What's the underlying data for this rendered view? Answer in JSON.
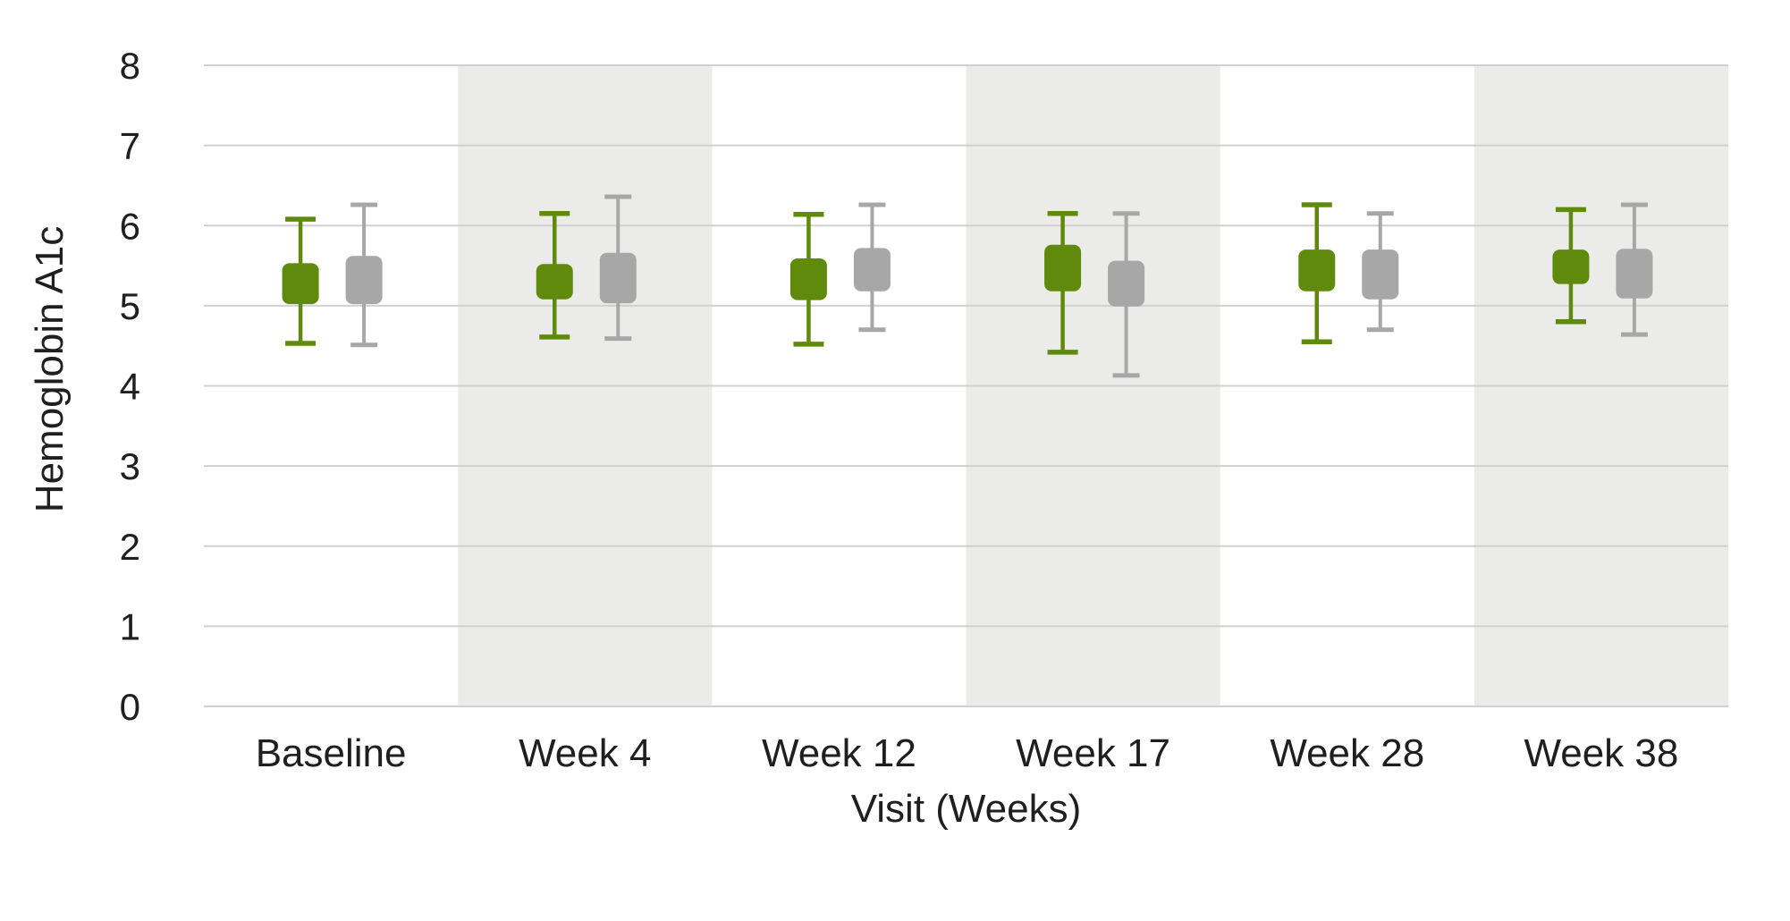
{
  "colors": {
    "background": "#ffffff",
    "green_series": "#608a0c",
    "gray_series": "#a7a7a7",
    "stripe_band": "#ebebe9",
    "gridline": "#d2d0ce",
    "text": "#1f1f1f"
  },
  "chart_data": {
    "type": "boxplot",
    "title": "",
    "xlabel": "Visit (Weeks)",
    "ylabel": "Hemoglobin A1c",
    "categories": [
      "Baseline",
      "Week 4",
      "Week 12",
      "Week 17",
      "Week 28",
      "Week 38"
    ],
    "striped_categories": [
      "Week 4",
      "Week 17",
      "Week 38"
    ],
    "y_ticks": [
      8,
      7,
      6,
      5,
      4,
      3,
      2,
      1,
      0
    ],
    "ylim": [
      0,
      8
    ],
    "grid": true,
    "legend": "none",
    "series": [
      {
        "name": "green-series",
        "color": "#608a0c",
        "whisker_low": [
          4.53,
          4.61,
          4.52,
          4.42,
          4.55,
          4.8
        ],
        "box_low": [
          5.02,
          5.08,
          5.07,
          5.18,
          5.18,
          5.27
        ],
        "box_high": [
          5.53,
          5.52,
          5.59,
          5.76,
          5.7,
          5.7
        ],
        "whisker_high": [
          6.08,
          6.15,
          6.14,
          6.15,
          6.26,
          6.2
        ]
      },
      {
        "name": "gray-series",
        "color": "#a7a7a7",
        "whisker_low": [
          4.51,
          4.59,
          4.7,
          4.13,
          4.7,
          4.64
        ],
        "box_low": [
          5.02,
          5.03,
          5.18,
          4.99,
          5.08,
          5.09
        ],
        "box_high": [
          5.62,
          5.66,
          5.72,
          5.56,
          5.7,
          5.71
        ],
        "whisker_high": [
          6.26,
          6.36,
          6.26,
          6.15,
          6.15,
          6.26
        ]
      }
    ]
  }
}
